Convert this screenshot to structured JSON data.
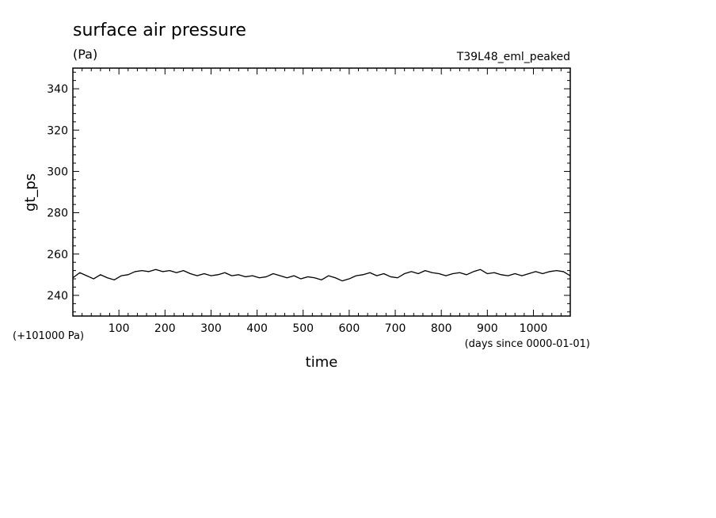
{
  "chart_data": {
    "type": "line",
    "title": "surface air pressure",
    "units": "(Pa)",
    "run_label": "T39L48_eml_peaked",
    "xlabel": "time",
    "ylabel": "gt_ps",
    "x_unit_note": "(days since 0000-01-01)",
    "y_offset_note": "(+101000 Pa)",
    "xlim": [
      0,
      1080
    ],
    "ylim": [
      230,
      350
    ],
    "x_ticks": [
      100,
      200,
      300,
      400,
      500,
      600,
      700,
      800,
      900,
      1000
    ],
    "x_tick_labels": [
      "100",
      "200",
      "300",
      "400",
      "500",
      "600",
      "700",
      "800",
      "900",
      "1000"
    ],
    "y_ticks": [
      240,
      260,
      280,
      300,
      320,
      340
    ],
    "y_tick_labels": [
      "240",
      "260",
      "280",
      "300",
      "320",
      "340"
    ],
    "grid": false,
    "series": [
      {
        "x": [
          0,
          15,
          30,
          45,
          60,
          75,
          90,
          105,
          120,
          135,
          150,
          165,
          180,
          195,
          210,
          225,
          240,
          255,
          270,
          285,
          300,
          315,
          330,
          345,
          360,
          375,
          390,
          405,
          420,
          435,
          450,
          465,
          480,
          495,
          510,
          525,
          540,
          555,
          570,
          585,
          600,
          615,
          630,
          645,
          660,
          675,
          690,
          705,
          720,
          735,
          750,
          765,
          780,
          795,
          810,
          825,
          840,
          855,
          870,
          885,
          900,
          915,
          930,
          945,
          960,
          975,
          990,
          1005,
          1020,
          1035,
          1050,
          1065,
          1080
        ],
        "values": [
          248.5,
          251.0,
          249.5,
          248.0,
          250.0,
          248.5,
          247.5,
          249.5,
          250.0,
          251.5,
          252.0,
          251.5,
          252.5,
          251.5,
          252.0,
          251.0,
          252.0,
          250.5,
          249.5,
          250.5,
          249.5,
          250.0,
          251.0,
          249.5,
          250.0,
          249.0,
          249.5,
          248.5,
          249.0,
          250.5,
          249.5,
          248.5,
          249.5,
          248.0,
          249.0,
          248.5,
          247.5,
          249.5,
          248.5,
          247.0,
          248.0,
          249.5,
          250.0,
          251.0,
          249.5,
          250.5,
          249.0,
          248.5,
          250.5,
          251.5,
          250.5,
          252.0,
          251.0,
          250.5,
          249.5,
          250.5,
          251.0,
          250.0,
          251.5,
          252.5,
          250.5,
          251.0,
          250.0,
          249.5,
          250.5,
          249.5,
          250.5,
          251.5,
          250.5,
          251.5,
          252.0,
          251.5,
          249.5
        ]
      }
    ]
  }
}
